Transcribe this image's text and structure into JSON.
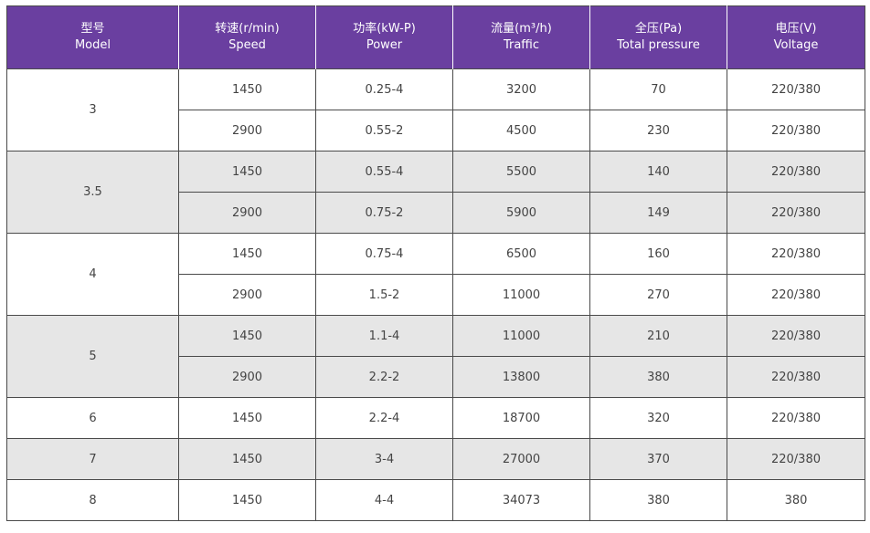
{
  "headers": [
    {
      "zh": "型号",
      "en": "Model"
    },
    {
      "zh": "转速(r/min)",
      "en": "Speed"
    },
    {
      "zh": "功率(kW-P)",
      "en": "Power"
    },
    {
      "zh": "流量(m³/h)",
      "en": "Traffic"
    },
    {
      "zh": "全压(Pa)",
      "en": "Total pressure"
    },
    {
      "zh": "电压(V)",
      "en": "Voltage"
    }
  ],
  "rows": [
    {
      "model": "3",
      "speed": "1450",
      "power": "0.25-4",
      "traffic": "3200",
      "pressure": "70",
      "voltage": "220/380"
    },
    {
      "speed": "2900",
      "power": "0.55-2",
      "traffic": "4500",
      "pressure": "230",
      "voltage": "220/380"
    },
    {
      "model": "3.5",
      "speed": "1450",
      "power": "0.55-4",
      "traffic": "5500",
      "pressure": "140",
      "voltage": "220/380"
    },
    {
      "speed": "2900",
      "power": "0.75-2",
      "traffic": "5900",
      "pressure": "149",
      "voltage": "220/380"
    },
    {
      "model": "4",
      "speed": "1450",
      "power": "0.75-4",
      "traffic": "6500",
      "pressure": "160",
      "voltage": "220/380"
    },
    {
      "speed": "2900",
      "power": "1.5-2",
      "traffic": "11000",
      "pressure": "270",
      "voltage": "220/380"
    },
    {
      "model": "5",
      "speed": "1450",
      "power": "1.1-4",
      "traffic": "11000",
      "pressure": "210",
      "voltage": "220/380"
    },
    {
      "speed": "2900",
      "power": "2.2-2",
      "traffic": "13800",
      "pressure": "380",
      "voltage": "220/380"
    },
    {
      "model": "6",
      "speed": "1450",
      "power": "2.2-4",
      "traffic": "18700",
      "pressure": "320",
      "voltage": "220/380"
    },
    {
      "model": "7",
      "speed": "1450",
      "power": "3-4",
      "traffic": "27000",
      "pressure": "370",
      "voltage": "220/380"
    },
    {
      "model": "8",
      "speed": "1450",
      "power": "4-4",
      "traffic": "34073",
      "pressure": "380",
      "voltage": "380"
    }
  ],
  "colors": {
    "header_bg": "#6a3fa0",
    "shade_bg": "#e6e6e6"
  }
}
